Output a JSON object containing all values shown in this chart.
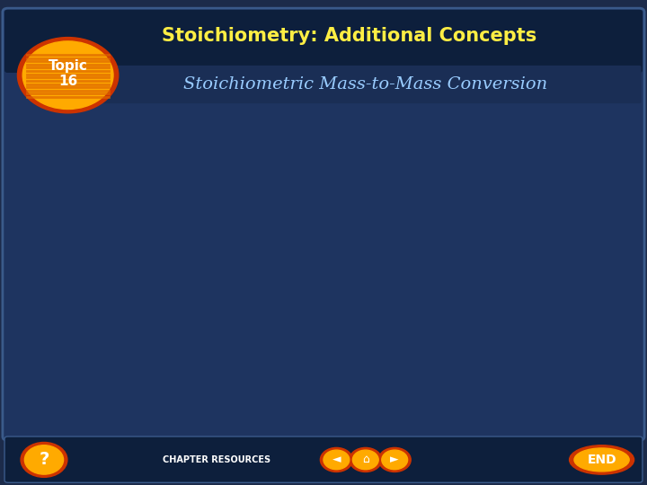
{
  "bg_outer": "#1c2b4a",
  "bg_slide": "#1e3460",
  "bg_header_top": "#0d1f3c",
  "bg_subtitle_bar": "#1a2e55",
  "header_title": "Stoichiometry: Additional Concepts",
  "subtitle": "Stoichiometric Mass-to-Mass Conversion",
  "topic_text": "Topic\n16",
  "header_text_color": "#ffee44",
  "subtitle_color": "#99ccff",
  "body_text_color": "#ffffff",
  "border_color": "#3a5a8a",
  "orange_dark": "#cc3300",
  "orange_mid": "#dd6600",
  "orange_light": "#ffaa00",
  "footer_bg": "#0d1f3c"
}
